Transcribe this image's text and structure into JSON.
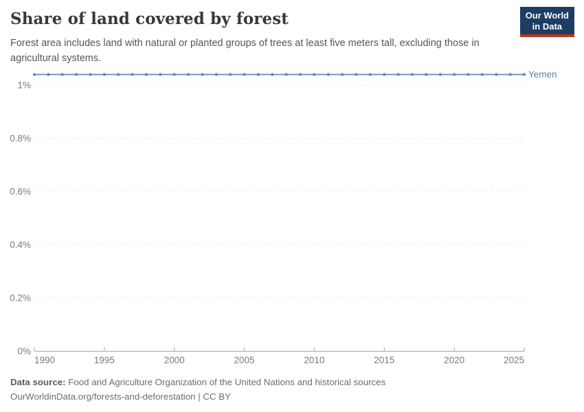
{
  "header": {
    "title": "Share of land covered by forest",
    "subtitle": "Forest area includes land with natural or planted groups of trees at least five meters tall, excluding those in agricultural systems.",
    "logo": {
      "line1": "Our World",
      "line2": "in Data"
    }
  },
  "chart_data": {
    "type": "line",
    "title": "Share of land covered by forest",
    "xlabel": "",
    "ylabel": "",
    "xlim": [
      1990,
      2025
    ],
    "ylim": [
      0,
      1.08
    ],
    "grid": "horizontal-dashed",
    "legend_position": "end-of-line-label",
    "xticks": [
      1990,
      1995,
      2000,
      2005,
      2010,
      2015,
      2020,
      2025
    ],
    "yticks": [
      {
        "value": 0,
        "label": "0%"
      },
      {
        "value": 0.2,
        "label": "0.2%"
      },
      {
        "value": 0.4,
        "label": "0.4%"
      },
      {
        "value": 0.6,
        "label": "0.6%"
      },
      {
        "value": 0.8,
        "label": "0.8%"
      },
      {
        "value": 1,
        "label": "1%"
      }
    ],
    "series": [
      {
        "name": "Yemen",
        "x": [
          1990,
          1991,
          1992,
          1993,
          1994,
          1995,
          1996,
          1997,
          1998,
          1999,
          2000,
          2001,
          2002,
          2003,
          2004,
          2005,
          2006,
          2007,
          2008,
          2009,
          2010,
          2011,
          2012,
          2013,
          2014,
          2015,
          2016,
          2017,
          2018,
          2019,
          2020,
          2021,
          2022,
          2023,
          2024,
          2025
        ],
        "values": [
          1.04,
          1.04,
          1.04,
          1.04,
          1.04,
          1.04,
          1.04,
          1.04,
          1.04,
          1.04,
          1.04,
          1.04,
          1.04,
          1.04,
          1.04,
          1.04,
          1.04,
          1.04,
          1.04,
          1.04,
          1.04,
          1.04,
          1.04,
          1.04,
          1.04,
          1.04,
          1.04,
          1.04,
          1.04,
          1.04,
          1.04,
          1.04,
          1.04,
          1.04,
          1.04,
          1.04
        ]
      }
    ]
  },
  "footer": {
    "source_label": "Data source:",
    "source_text": "Food and Agriculture Organization of the United Nations and historical sources",
    "note": "OurWorldinData.org/forests-and-deforestation | CC BY"
  },
  "colors": {
    "line": "#6788ba",
    "marker": "#5f80b4",
    "series_label": "#5b7db8",
    "grid": "#e0e0e0",
    "axis": "#a5a5a5",
    "tick_text": "#7a7a7a",
    "logo_bg": "#1d3d63",
    "logo_accent": "#c0341f"
  }
}
